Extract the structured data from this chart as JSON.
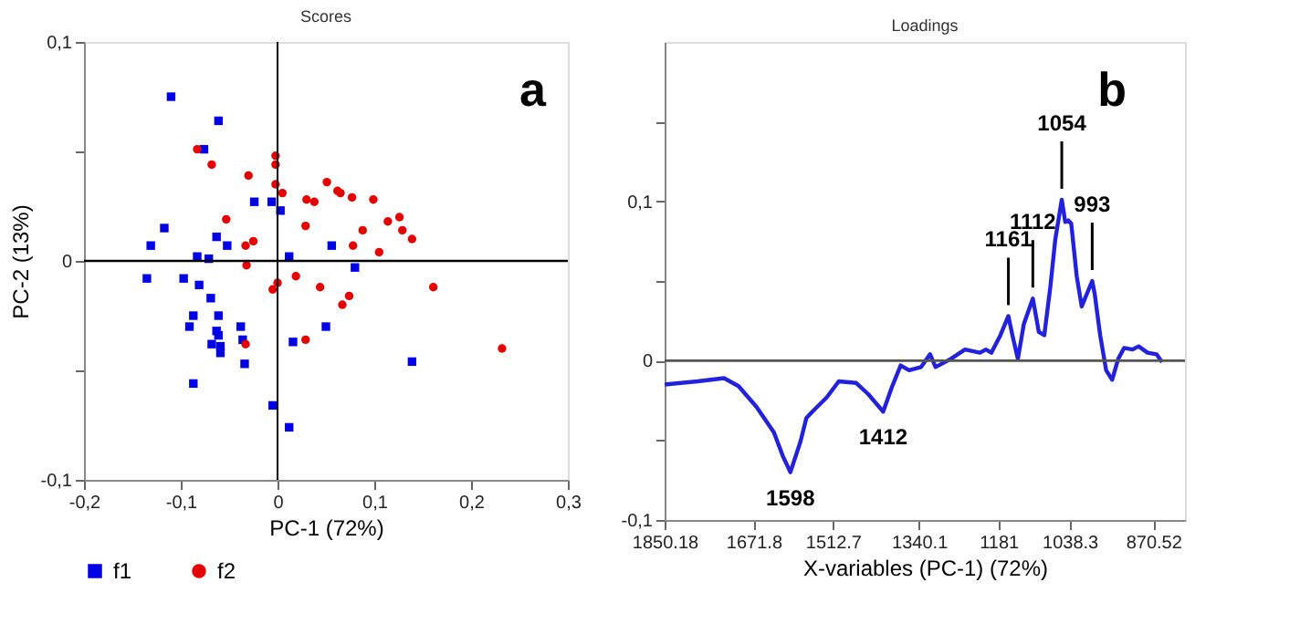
{
  "chart_data": [
    {
      "type": "scatter",
      "title": "Scores",
      "xlabel": "PC-1 (72%)",
      "ylabel": "PC-2 (13%)",
      "xlim": [
        -0.2,
        0.3
      ],
      "ylim": [
        -0.1,
        0.1
      ],
      "xticks": [
        {
          "value": -0.2,
          "label": "-0,2"
        },
        {
          "value": -0.1,
          "label": "-0,1"
        },
        0,
        {
          "value": 0.1,
          "label": "0,1"
        },
        {
          "value": 0.2,
          "label": "0,2"
        },
        {
          "value": 0.3,
          "label": "0,3"
        }
      ],
      "yticks": [
        {
          "value": -0.1,
          "label": "-0,1"
        },
        {
          "value": -0.05,
          "label": null
        },
        0,
        {
          "value": 0.05,
          "label": null
        },
        {
          "value": 0.1,
          "label": "0,1"
        }
      ],
      "grid": false,
      "legend": "bottom",
      "ref_lines": [
        {
          "axis": "x",
          "value": 0,
          "color": "#000000"
        },
        {
          "axis": "y",
          "value": 0,
          "color": "#000000"
        }
      ],
      "annotations": [
        "a"
      ],
      "series": [
        {
          "name": "f1",
          "color": "#0000e6",
          "marker": "square",
          "x": [
            -0.11,
            -0.061,
            -0.076,
            -0.024,
            -0.006,
            0.003,
            -0.117,
            -0.131,
            -0.063,
            -0.052,
            -0.083,
            -0.071,
            0.012,
            0.056,
            0.08,
            -0.135,
            -0.097,
            -0.081,
            -0.069,
            -0.087,
            -0.091,
            -0.061,
            -0.063,
            -0.061,
            -0.038,
            -0.068,
            -0.059,
            -0.059,
            -0.036,
            -0.034,
            0.016,
            0.05,
            -0.087,
            0.139,
            -0.005,
            0.012
          ],
          "values": [
            0.075,
            0.064,
            0.051,
            0.027,
            0.027,
            0.023,
            0.015,
            0.007,
            0.011,
            0.007,
            0.002,
            0.001,
            0.002,
            0.007,
            -0.003,
            -0.008,
            -0.008,
            -0.011,
            -0.017,
            -0.025,
            -0.03,
            -0.025,
            -0.032,
            -0.034,
            -0.03,
            -0.038,
            -0.039,
            -0.042,
            -0.036,
            -0.047,
            -0.037,
            -0.03,
            -0.056,
            -0.046,
            -0.066,
            -0.076
          ]
        },
        {
          "name": "f2",
          "color": "#e60000",
          "marker": "circle",
          "x": [
            -0.083,
            -0.068,
            -0.03,
            -0.002,
            -0.002,
            -0.002,
            0.005,
            0.03,
            0.038,
            0.051,
            0.062,
            0.065,
            0.077,
            0.099,
            -0.053,
            0.114,
            0.126,
            0.129,
            0.088,
            0.139,
            0.029,
            -0.025,
            -0.033,
            0.078,
            0.105,
            -0.032,
            0.019,
            0.0,
            -0.005,
            0.044,
            0.161,
            0.074,
            0.067,
            0.029,
            -0.033,
            0.232
          ],
          "values": [
            0.051,
            0.044,
            0.039,
            0.048,
            0.044,
            0.035,
            0.031,
            0.028,
            0.027,
            0.036,
            0.032,
            0.031,
            0.029,
            0.028,
            0.019,
            0.018,
            0.02,
            0.014,
            0.014,
            0.01,
            0.016,
            0.009,
            0.007,
            0.007,
            0.004,
            -0.002,
            -0.007,
            -0.01,
            -0.013,
            -0.012,
            -0.012,
            -0.016,
            -0.02,
            -0.036,
            -0.038,
            -0.04
          ]
        }
      ]
    },
    {
      "type": "line",
      "title": "Loadings",
      "xlabel": "X-variables (PC-1) (72%)",
      "xlim": [
        1850.18,
        807
      ],
      "ylim": [
        -0.1,
        0.2
      ],
      "xticks": [
        1850.18,
        1671.8,
        1512.7,
        1340.1,
        1181,
        1038.3,
        870.52
      ],
      "yticks": [
        {
          "value": -0.1,
          "label": "-0,1"
        },
        {
          "value": -0.05,
          "label": null
        },
        0,
        {
          "value": 0.05,
          "label": null
        },
        {
          "value": 0.1,
          "label": "0,1"
        },
        {
          "value": 0.15,
          "label": null
        }
      ],
      "grid": false,
      "marker": "none",
      "line_style": "solid",
      "ref_lines": [
        {
          "axis": "y",
          "value": 0,
          "color": "#555555"
        }
      ],
      "annotations": [
        "b",
        {
          "text": "1598",
          "x": 1598,
          "y": -0.07
        },
        {
          "text": "1412",
          "x": 1412,
          "y": -0.032
        },
        {
          "text": "1161",
          "x": 1161,
          "y": 0.028
        },
        {
          "text": "1112",
          "x": 1112,
          "y": 0.039
        },
        {
          "text": "1054",
          "x": 1054,
          "y": 0.101
        },
        {
          "text": "993",
          "x": 993,
          "y": 0.05
        }
      ],
      "series": [
        {
          "color": "#2222dd",
          "x": [
            1850,
            1784,
            1731,
            1702,
            1666,
            1631,
            1613,
            1598,
            1578,
            1566,
            1554,
            1525,
            1501,
            1466,
            1442,
            1412,
            1395,
            1377,
            1360,
            1336,
            1318,
            1307,
            1277,
            1248,
            1218,
            1206,
            1195,
            1177,
            1161,
            1153,
            1142,
            1130,
            1112,
            1100,
            1089,
            1077,
            1067,
            1054,
            1047,
            1041,
            1035,
            1024,
            1014,
            993,
            988,
            977,
            965,
            953,
            941,
            929,
            912,
            900,
            882,
            864,
            853
          ],
          "values": [
            -0.015,
            -0.013,
            -0.011,
            -0.016,
            -0.029,
            -0.045,
            -0.06,
            -0.07,
            -0.051,
            -0.036,
            -0.032,
            -0.023,
            -0.013,
            -0.014,
            -0.021,
            -0.032,
            -0.017,
            -0.003,
            -0.006,
            -0.004,
            0.004,
            -0.004,
            0.001,
            0.007,
            0.005,
            0.007,
            0.005,
            0.016,
            0.028,
            0.016,
            0.001,
            0.023,
            0.039,
            0.018,
            0.016,
            0.046,
            0.076,
            0.101,
            0.087,
            0.088,
            0.086,
            0.053,
            0.034,
            0.05,
            0.042,
            0.016,
            -0.006,
            -0.012,
            0.001,
            0.008,
            0.007,
            0.009,
            0.005,
            0.004,
            -0.001
          ]
        }
      ]
    }
  ]
}
